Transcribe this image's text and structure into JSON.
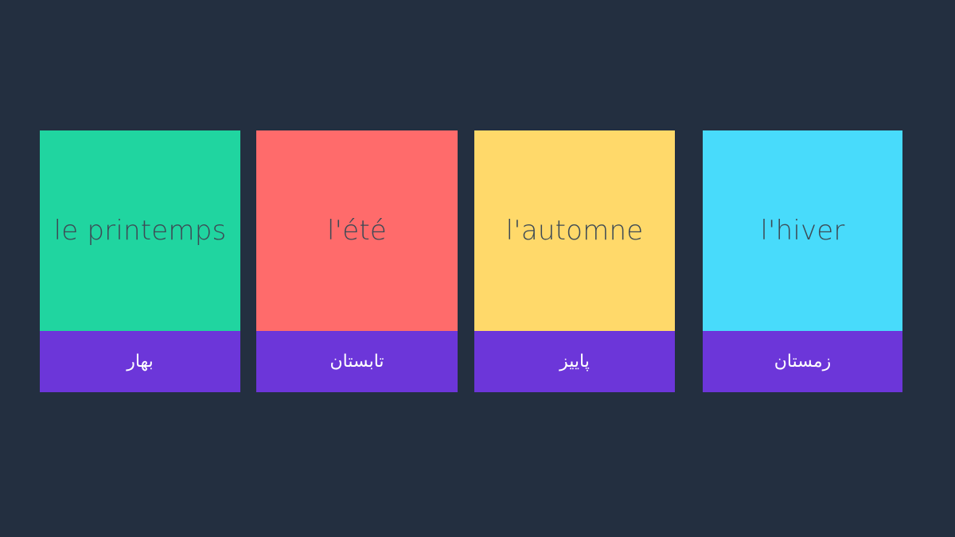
{
  "cards": [
    {
      "french": "le printemps",
      "persian": "بهار",
      "color": "#20d5a0"
    },
    {
      "french": "l'été",
      "persian": "تابستان",
      "color": "#ff6b6b"
    },
    {
      "french": "l'automne",
      "persian": "پاییز",
      "color": "#ffd96a"
    },
    {
      "french": "l'hiver",
      "persian": "زمستان",
      "color": "#48dbfb"
    }
  ],
  "footer_color": "#6c36d9",
  "background": "#232f40"
}
